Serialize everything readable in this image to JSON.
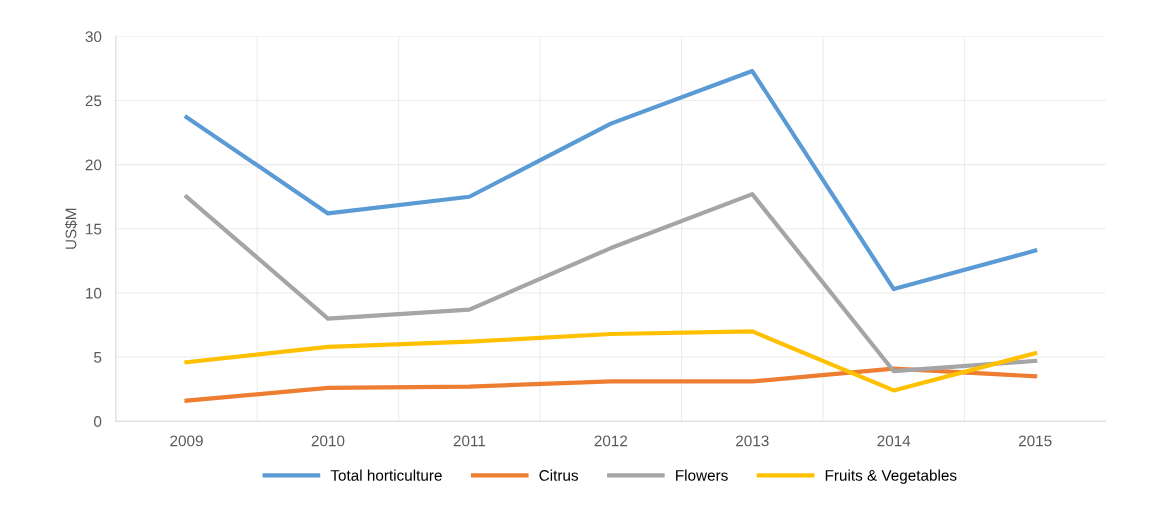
{
  "chart_data": {
    "type": "line",
    "ylabel": "US$M",
    "categories": [
      "2009",
      "2010",
      "2011",
      "2012",
      "2013",
      "2014",
      "2015"
    ],
    "series": [
      {
        "name": "Total horticulture",
        "color": "#5b9bd5",
        "values": [
          23.7,
          16.2,
          17.5,
          23.2,
          27.3,
          10.3,
          13.3
        ]
      },
      {
        "name": "Citrus",
        "color": "#ed7d31",
        "values": [
          1.6,
          2.6,
          2.7,
          3.1,
          3.1,
          4.1,
          3.5
        ]
      },
      {
        "name": "Flowers",
        "color": "#a5a5a5",
        "values": [
          17.5,
          8.0,
          8.7,
          13.5,
          17.7,
          3.9,
          4.7
        ]
      },
      {
        "name": "Fruits & Vegetables",
        "color": "#ffc000",
        "values": [
          4.6,
          5.8,
          6.2,
          6.8,
          7.0,
          2.4,
          5.3
        ]
      }
    ],
    "ylim": [
      0,
      30
    ],
    "yticks": [
      0,
      5,
      10,
      15,
      20,
      25,
      30
    ],
    "grid": true,
    "legend": "bottom",
    "marker": "none",
    "line_style": "solid"
  }
}
